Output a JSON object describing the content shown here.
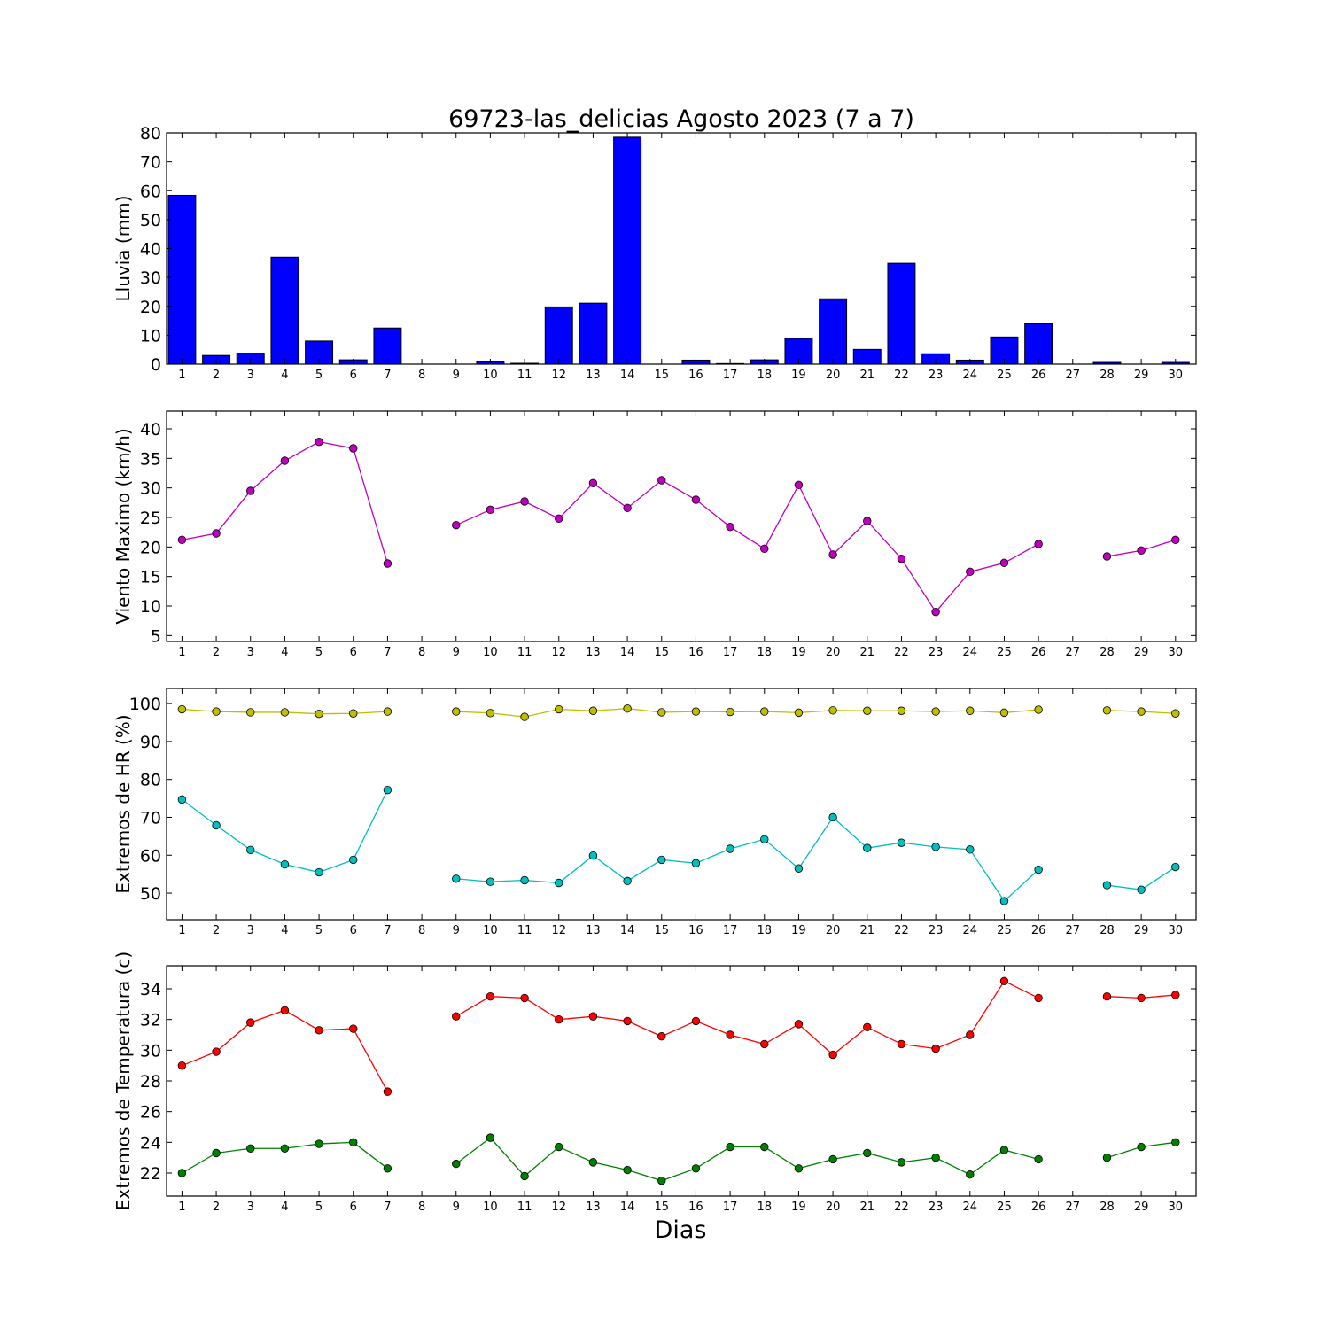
{
  "chart_data": [
    {
      "type": "bar",
      "title": "69723-las_delicias Agosto 2023  (7 a 7)",
      "ylabel": "Lluvia (mm)",
      "xlabel": "",
      "categories": [
        "1",
        "2",
        "3",
        "4",
        "5",
        "6",
        "7",
        "8",
        "9",
        "10",
        "11",
        "12",
        "13",
        "14",
        "15",
        "16",
        "17",
        "18",
        "19",
        "20",
        "21",
        "22",
        "23",
        "24",
        "25",
        "26",
        "27",
        "28",
        "29",
        "30"
      ],
      "values": [
        58.4,
        3.0,
        3.8,
        37.0,
        8.0,
        1.5,
        12.5,
        0,
        0,
        0.9,
        0.3,
        19.8,
        21.1,
        78.5,
        0,
        1.4,
        0.2,
        1.5,
        8.9,
        22.6,
        5.1,
        34.9,
        3.6,
        1.4,
        9.4,
        14.0,
        0,
        0.6,
        0,
        0.6
      ],
      "ylim": [
        0,
        80
      ],
      "yticks": [
        0,
        10,
        20,
        30,
        40,
        50,
        60,
        70,
        80
      ],
      "color": "#0000ff"
    },
    {
      "type": "line",
      "ylabel": "Viento Maximo (km/h)",
      "xlabel": "",
      "x_ticks": [
        "1",
        "2",
        "3",
        "4",
        "5",
        "6",
        "7",
        "8",
        "9",
        "10",
        "11",
        "12",
        "13",
        "14",
        "15",
        "16",
        "17",
        "18",
        "19",
        "20",
        "21",
        "22",
        "23",
        "24",
        "25",
        "26",
        "27",
        "28",
        "29",
        "30"
      ],
      "x": [
        1,
        2,
        3,
        4,
        5,
        6,
        7,
        9,
        10,
        11,
        12,
        13,
        14,
        15,
        16,
        17,
        18,
        19,
        20,
        21,
        22,
        23,
        24,
        25,
        26,
        28,
        29,
        30
      ],
      "series": [
        {
          "values": [
            21.2,
            22.3,
            29.5,
            34.6,
            37.8,
            36.7,
            17.2,
            23.7,
            26.3,
            27.7,
            24.8,
            30.8,
            26.6,
            31.3,
            28.0,
            23.4,
            19.7,
            30.5,
            18.7,
            24.4,
            18.0,
            9.0,
            15.8,
            17.3,
            20.5,
            18.4,
            19.4,
            21.2
          ],
          "color": "#bf00bf"
        }
      ],
      "ylim": [
        4,
        43
      ],
      "yticks": [
        5,
        10,
        15,
        20,
        25,
        30,
        35,
        40
      ]
    },
    {
      "type": "line",
      "ylabel": "Extremos de HR (%)",
      "xlabel": "",
      "x_ticks": [
        "1",
        "2",
        "3",
        "4",
        "5",
        "6",
        "7",
        "8",
        "9",
        "10",
        "11",
        "12",
        "13",
        "14",
        "15",
        "16",
        "17",
        "18",
        "19",
        "20",
        "21",
        "22",
        "23",
        "24",
        "25",
        "26",
        "27",
        "28",
        "29",
        "30"
      ],
      "x": [
        1,
        2,
        3,
        4,
        5,
        6,
        7,
        9,
        10,
        11,
        12,
        13,
        14,
        15,
        16,
        17,
        18,
        19,
        20,
        21,
        22,
        23,
        24,
        25,
        26,
        28,
        29,
        30
      ],
      "series": [
        {
          "values": [
            98.5,
            97.9,
            97.7,
            97.7,
            97.3,
            97.4,
            97.9,
            97.9,
            97.5,
            96.5,
            98.5,
            98.1,
            98.7,
            97.7,
            97.9,
            97.8,
            97.9,
            97.6,
            98.2,
            98.1,
            98.1,
            97.9,
            98.1,
            97.6,
            98.4,
            98.2,
            97.9,
            97.4
          ],
          "color": "#bfbf00"
        },
        {
          "values": [
            74.7,
            67.9,
            61.4,
            57.6,
            55.5,
            58.8,
            77.2,
            53.8,
            53.0,
            53.4,
            52.7,
            59.9,
            53.2,
            58.8,
            57.9,
            61.7,
            64.2,
            56.5,
            70.0,
            61.9,
            63.3,
            62.2,
            61.5,
            47.9,
            56.2,
            52.1,
            50.9,
            56.9
          ],
          "color": "#00bfbf"
        }
      ],
      "ylim": [
        43,
        104
      ],
      "yticks": [
        50,
        60,
        70,
        80,
        90,
        100
      ]
    },
    {
      "type": "line",
      "ylabel": "Extremos de Temperatura (c)",
      "xlabel": "Dias",
      "x_ticks": [
        "1",
        "2",
        "3",
        "4",
        "5",
        "6",
        "7",
        "8",
        "9",
        "10",
        "11",
        "12",
        "13",
        "14",
        "15",
        "16",
        "17",
        "18",
        "19",
        "20",
        "21",
        "22",
        "23",
        "24",
        "25",
        "26",
        "27",
        "28",
        "29",
        "30"
      ],
      "x": [
        1,
        2,
        3,
        4,
        5,
        6,
        7,
        9,
        10,
        11,
        12,
        13,
        14,
        15,
        16,
        17,
        18,
        19,
        20,
        21,
        22,
        23,
        24,
        25,
        26,
        28,
        29,
        30
      ],
      "series": [
        {
          "values": [
            29.0,
            29.9,
            31.8,
            32.6,
            31.3,
            31.4,
            27.3,
            32.2,
            33.5,
            33.4,
            32.0,
            32.2,
            31.9,
            30.9,
            31.9,
            31.0,
            30.4,
            31.7,
            29.7,
            31.5,
            30.4,
            30.1,
            31.0,
            34.5,
            33.4,
            33.5,
            33.4,
            33.6
          ],
          "color": "#ff0000"
        },
        {
          "values": [
            22.0,
            23.3,
            23.6,
            23.6,
            23.9,
            24.0,
            22.3,
            22.6,
            24.3,
            21.8,
            23.7,
            22.7,
            22.2,
            21.5,
            22.3,
            23.7,
            23.7,
            22.3,
            22.9,
            23.3,
            22.7,
            23.0,
            21.9,
            23.5,
            22.9,
            23.0,
            23.7,
            24.0
          ],
          "color": "#008000"
        }
      ],
      "ylim": [
        20.5,
        35.5
      ],
      "yticks": [
        22,
        24,
        26,
        28,
        30,
        32,
        34
      ]
    }
  ]
}
